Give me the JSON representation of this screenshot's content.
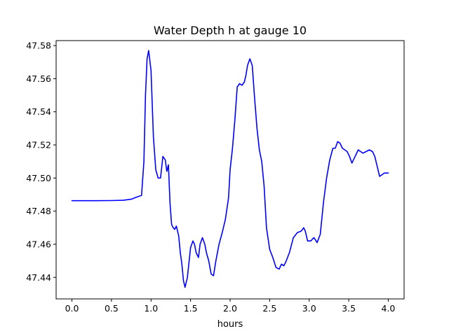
{
  "chart_data": {
    "type": "line",
    "title": "Water Depth h at gauge 10",
    "xlabel": "hours",
    "ylabel": "",
    "xlim": [
      -0.2,
      4.2
    ],
    "ylim": [
      47.427,
      47.583
    ],
    "xticks": [
      0.0,
      0.5,
      1.0,
      1.5,
      2.0,
      2.5,
      3.0,
      3.5,
      4.0
    ],
    "xtick_labels": [
      "0.0",
      "0.5",
      "1.0",
      "1.5",
      "2.0",
      "2.5",
      "3.0",
      "3.5",
      "4.0"
    ],
    "yticks": [
      47.44,
      47.46,
      47.48,
      47.5,
      47.52,
      47.54,
      47.56,
      47.58
    ],
    "ytick_labels": [
      "47.44",
      "47.46",
      "47.48",
      "47.50",
      "47.52",
      "47.54",
      "47.56",
      "47.58"
    ],
    "grid": false,
    "series": [
      {
        "color": "#0000ff",
        "x": [
          0.0,
          0.3,
          0.5,
          0.65,
          0.75,
          0.82,
          0.88,
          0.91,
          0.93,
          0.95,
          0.97,
          1.0,
          1.03,
          1.06,
          1.09,
          1.12,
          1.15,
          1.18,
          1.2,
          1.22,
          1.24,
          1.26,
          1.28,
          1.3,
          1.32,
          1.35,
          1.37,
          1.39,
          1.41,
          1.43,
          1.46,
          1.5,
          1.53,
          1.55,
          1.57,
          1.6,
          1.62,
          1.65,
          1.68,
          1.7,
          1.73,
          1.76,
          1.79,
          1.82,
          1.86,
          1.9,
          1.94,
          1.98,
          2.0,
          2.03,
          2.06,
          2.09,
          2.12,
          2.15,
          2.18,
          2.2,
          2.22,
          2.25,
          2.28,
          2.31,
          2.34,
          2.37,
          2.4,
          2.43,
          2.46,
          2.5,
          2.54,
          2.58,
          2.62,
          2.65,
          2.68,
          2.71,
          2.75,
          2.8,
          2.85,
          2.9,
          2.93,
          2.95,
          2.98,
          3.02,
          3.06,
          3.1,
          3.14,
          3.18,
          3.22,
          3.26,
          3.3,
          3.33,
          3.36,
          3.39,
          3.42,
          3.45,
          3.48,
          3.51,
          3.54,
          3.58,
          3.62,
          3.65,
          3.68,
          3.72,
          3.76,
          3.8,
          3.83,
          3.86,
          3.89,
          3.92,
          3.95,
          3.98,
          4.0
        ],
        "y": [
          47.4863,
          47.4863,
          47.4864,
          47.4866,
          47.4872,
          47.4885,
          47.4895,
          47.51,
          47.55,
          47.572,
          47.577,
          47.565,
          47.525,
          47.505,
          47.5,
          47.5,
          47.513,
          47.511,
          47.504,
          47.508,
          47.485,
          47.472,
          47.47,
          47.469,
          47.471,
          47.465,
          47.455,
          47.448,
          47.438,
          47.434,
          47.44,
          47.458,
          47.462,
          47.46,
          47.455,
          47.452,
          47.46,
          47.464,
          47.46,
          47.455,
          47.45,
          47.442,
          47.441,
          47.45,
          47.46,
          47.467,
          47.475,
          47.488,
          47.505,
          47.518,
          47.535,
          47.555,
          47.557,
          47.556,
          47.558,
          47.562,
          47.568,
          47.572,
          47.568,
          47.548,
          47.53,
          47.517,
          47.51,
          47.495,
          47.47,
          47.457,
          47.452,
          47.446,
          47.445,
          47.448,
          47.447,
          47.45,
          47.455,
          47.464,
          47.467,
          47.468,
          47.47,
          47.468,
          47.462,
          47.462,
          47.464,
          47.461,
          47.466,
          47.485,
          47.5,
          47.511,
          47.518,
          47.518,
          47.522,
          47.521,
          47.518,
          47.517,
          47.516,
          47.513,
          47.509,
          47.513,
          47.517,
          47.516,
          47.515,
          47.516,
          47.517,
          47.516,
          47.513,
          47.507,
          47.501,
          47.502,
          47.503,
          47.503,
          47.503
        ]
      }
    ]
  }
}
